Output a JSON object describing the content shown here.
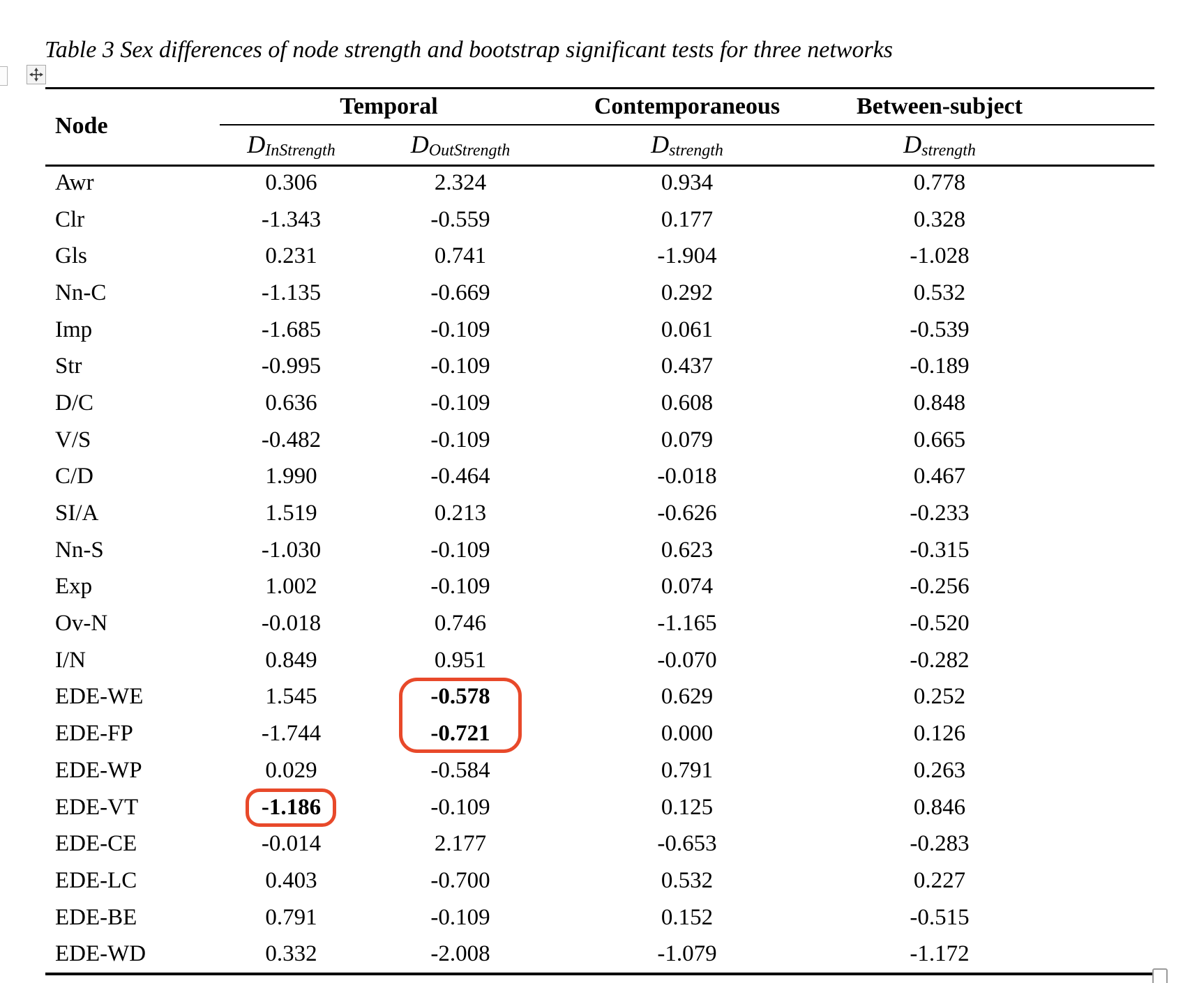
{
  "title": "Table 3 Sex differences of node strength and bootstrap significant tests for three networks",
  "table": {
    "node_header": "Node",
    "groups": [
      {
        "label": "Temporal"
      },
      {
        "label": "Contemporaneous"
      },
      {
        "label": "Between-subject"
      }
    ],
    "measure_columns": [
      {
        "base": "D",
        "sub": "InStrength"
      },
      {
        "base": "D",
        "sub": "OutStrength"
      },
      {
        "base": "D",
        "sub": "strength"
      },
      {
        "base": "D",
        "sub": "strength"
      }
    ],
    "rows": [
      {
        "node": "Awr",
        "values": [
          "0.306",
          "2.324",
          "0.934",
          "0.778"
        ],
        "highlight": []
      },
      {
        "node": "Clr",
        "values": [
          "-1.343",
          "-0.559",
          "0.177",
          "0.328"
        ],
        "highlight": []
      },
      {
        "node": "Gls",
        "values": [
          "0.231",
          "0.741",
          "-1.904",
          "-1.028"
        ],
        "highlight": []
      },
      {
        "node": "Nn-C",
        "values": [
          "-1.135",
          "-0.669",
          "0.292",
          "0.532"
        ],
        "highlight": []
      },
      {
        "node": "Imp",
        "values": [
          "-1.685",
          "-0.109",
          "0.061",
          "-0.539"
        ],
        "highlight": []
      },
      {
        "node": "Str",
        "values": [
          "-0.995",
          "-0.109",
          "0.437",
          "-0.189"
        ],
        "highlight": []
      },
      {
        "node": "D/C",
        "values": [
          "0.636",
          "-0.109",
          "0.608",
          "0.848"
        ],
        "highlight": []
      },
      {
        "node": "V/S",
        "values": [
          "-0.482",
          "-0.109",
          "0.079",
          "0.665"
        ],
        "highlight": []
      },
      {
        "node": "C/D",
        "values": [
          "1.990",
          "-0.464",
          "-0.018",
          "0.467"
        ],
        "highlight": []
      },
      {
        "node": "SI/A",
        "values": [
          "1.519",
          "0.213",
          "-0.626",
          "-0.233"
        ],
        "highlight": []
      },
      {
        "node": "Nn-S",
        "values": [
          "-1.030",
          "-0.109",
          "0.623",
          "-0.315"
        ],
        "highlight": []
      },
      {
        "node": "Exp",
        "values": [
          "1.002",
          "-0.109",
          "0.074",
          "-0.256"
        ],
        "highlight": []
      },
      {
        "node": "Ov-N",
        "values": [
          "-0.018",
          "0.746",
          "-1.165",
          "-0.520"
        ],
        "highlight": []
      },
      {
        "node": "I/N",
        "values": [
          "0.849",
          "0.951",
          "-0.070",
          "-0.282"
        ],
        "highlight": []
      },
      {
        "node": "EDE-WE",
        "values": [
          "1.545",
          "-0.578",
          "0.629",
          "0.252"
        ],
        "highlight": [
          1
        ]
      },
      {
        "node": "EDE-FP",
        "values": [
          "-1.744",
          "-0.721",
          "0.000",
          "0.126"
        ],
        "highlight": [
          1
        ]
      },
      {
        "node": "EDE-WP",
        "values": [
          "0.029",
          "-0.584",
          "0.791",
          "0.263"
        ],
        "highlight": []
      },
      {
        "node": "EDE-VT",
        "values": [
          "-1.186",
          "-0.109",
          "0.125",
          "0.846"
        ],
        "highlight": [
          0
        ]
      },
      {
        "node": "EDE-CE",
        "values": [
          "-0.014",
          "2.177",
          "-0.653",
          "-0.283"
        ],
        "highlight": []
      },
      {
        "node": "EDE-LC",
        "values": [
          "0.403",
          "-0.700",
          "0.532",
          "0.227"
        ],
        "highlight": []
      },
      {
        "node": "EDE-BE",
        "values": [
          "0.791",
          "-0.109",
          "0.152",
          "-0.515"
        ],
        "highlight": []
      },
      {
        "node": "EDE-WD",
        "values": [
          "0.332",
          "-2.008",
          "-1.079",
          "-1.172"
        ],
        "highlight": []
      }
    ]
  },
  "annotations": {
    "highlight_color": "#e8492a",
    "circled_values": [
      "-0.578",
      "-0.721",
      "-1.186"
    ]
  },
  "icons": {
    "move_handle": "move-arrows-icon",
    "resize_handle": "table-resize-handle"
  }
}
